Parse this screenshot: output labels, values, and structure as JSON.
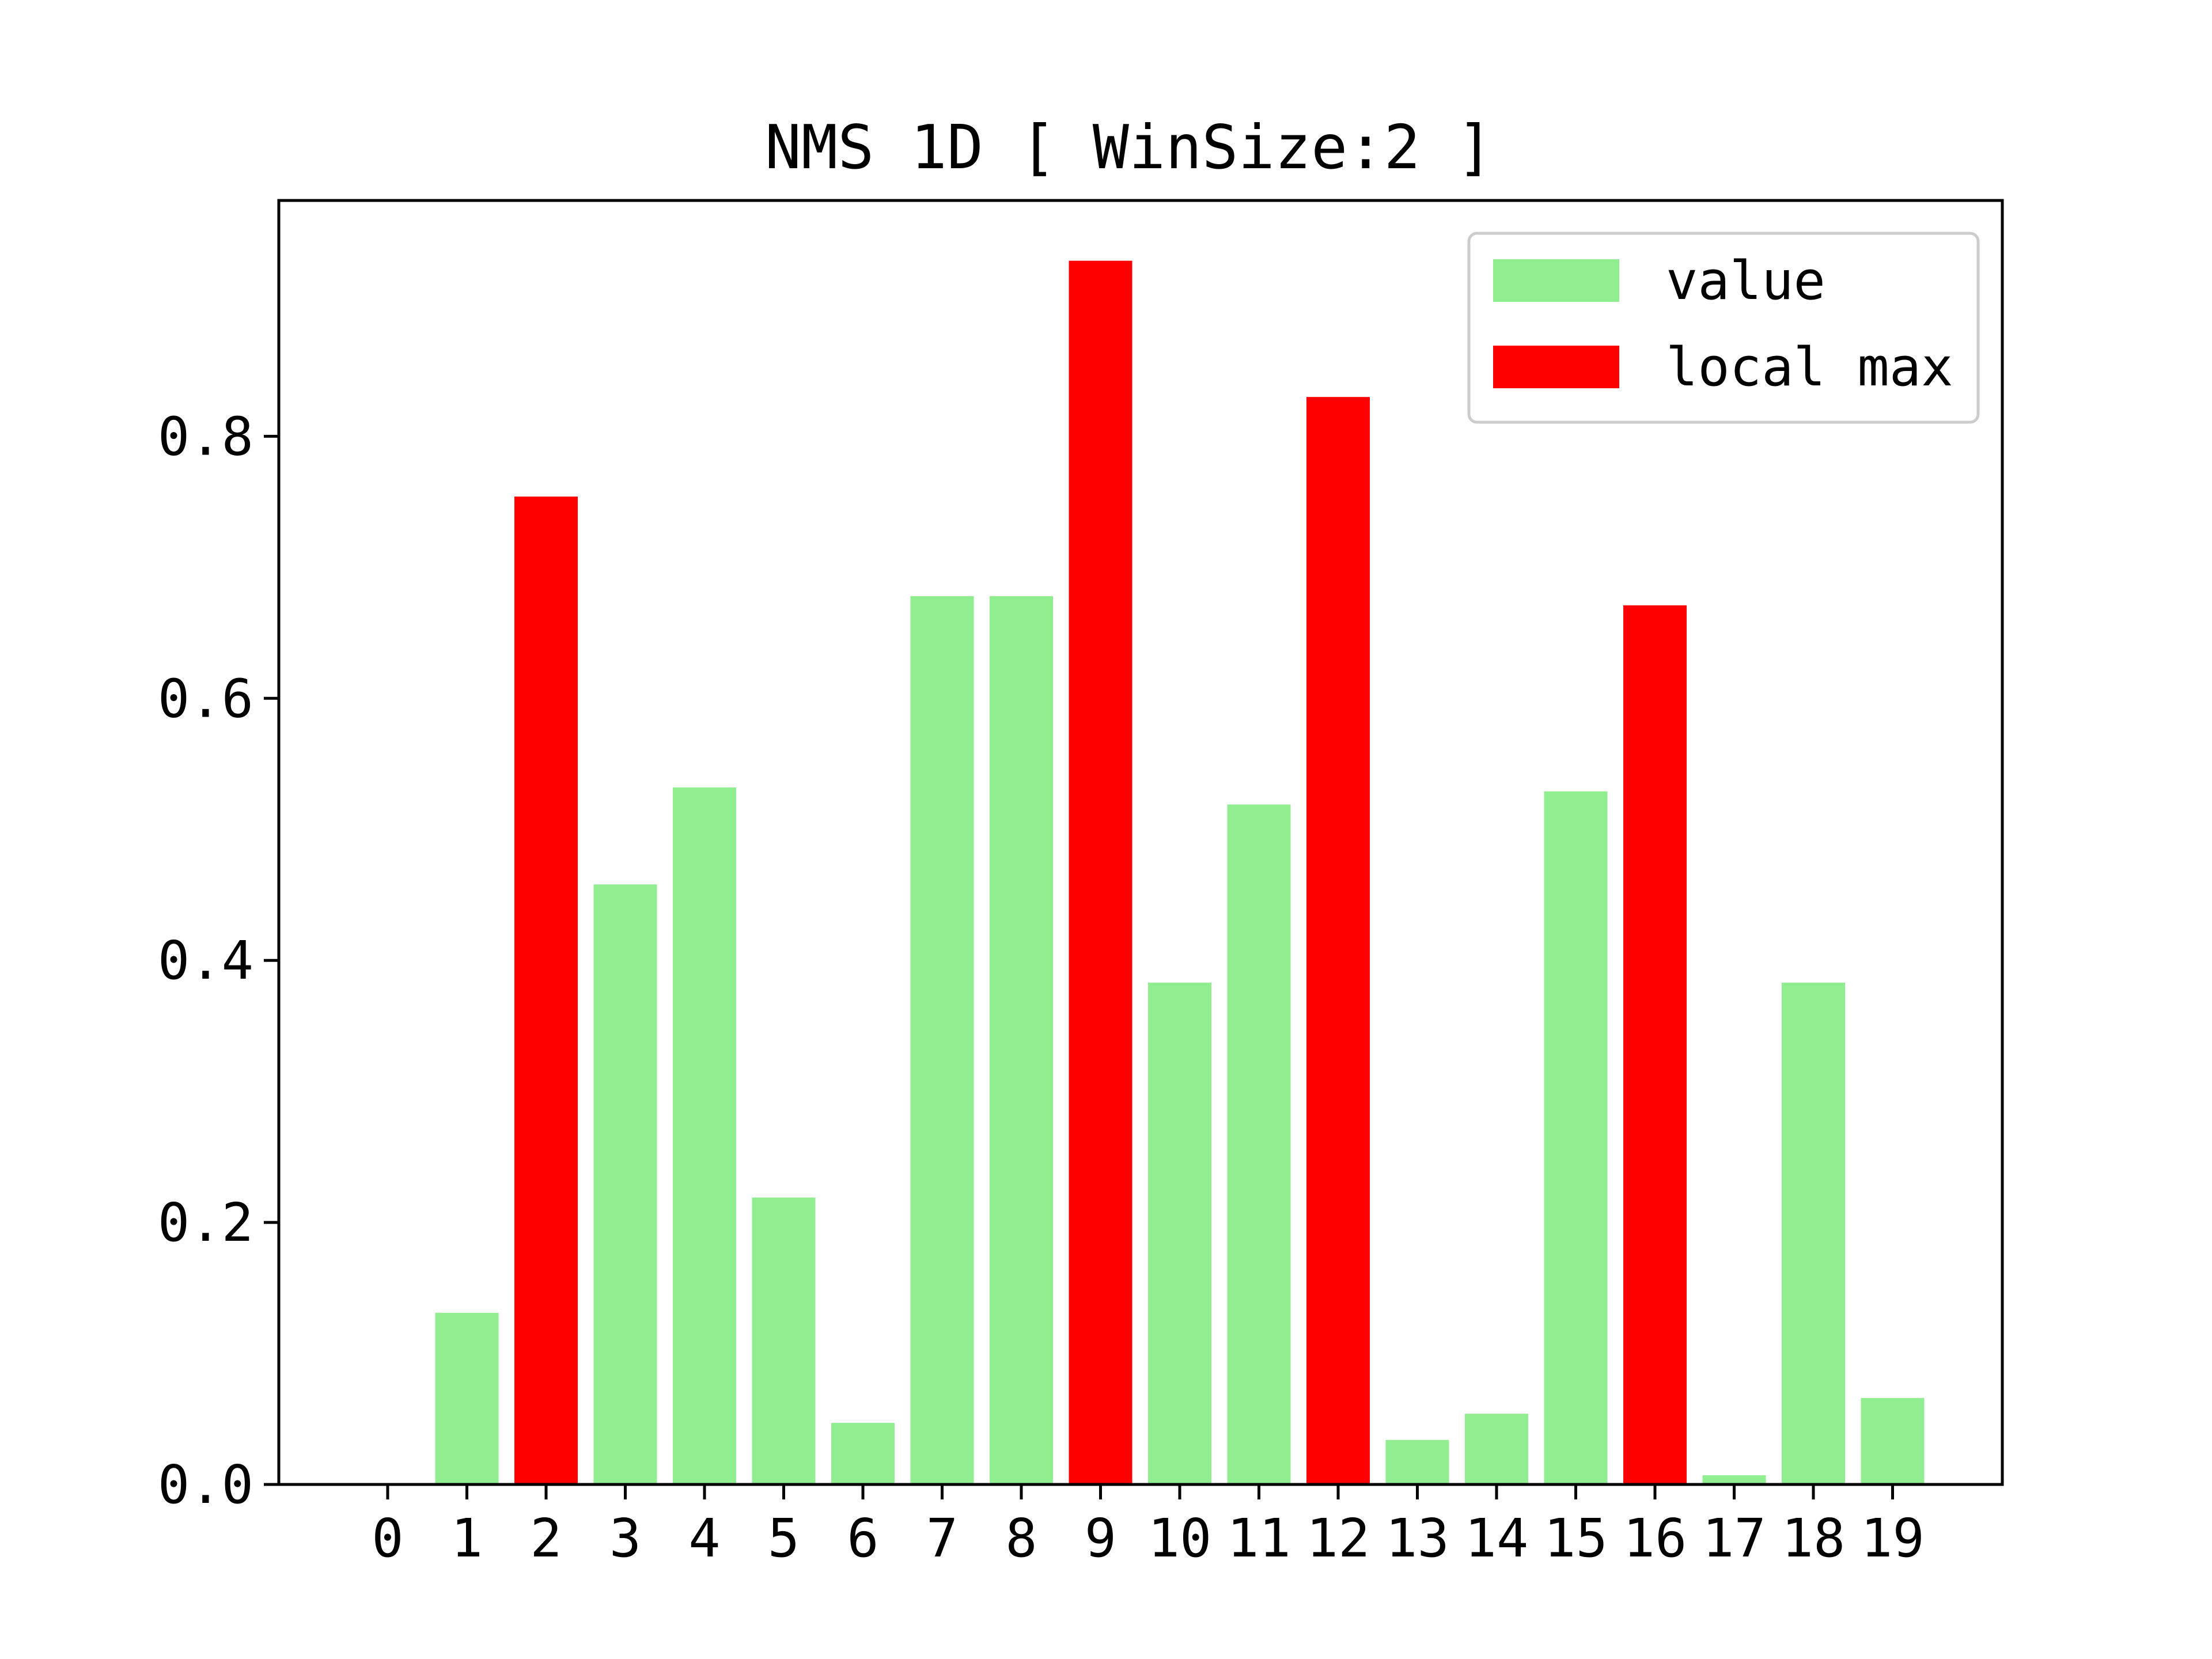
{
  "chart_data": {
    "type": "bar",
    "title": "NMS 1D [ WinSize:2 ]",
    "xlabel": "",
    "ylabel": "",
    "categories": [
      "0",
      "1",
      "2",
      "3",
      "4",
      "5",
      "6",
      "7",
      "8",
      "9",
      "10",
      "11",
      "12",
      "13",
      "14",
      "15",
      "16",
      "17",
      "18",
      "19"
    ],
    "series": [
      {
        "name": "value",
        "color": "#90ee90",
        "values": [
          0.0,
          0.131,
          null,
          0.458,
          0.532,
          0.219,
          0.047,
          0.678,
          0.678,
          null,
          0.383,
          0.519,
          null,
          0.034,
          0.054,
          0.529,
          null,
          0.007,
          0.383,
          0.066
        ]
      },
      {
        "name": "local max",
        "color": "#ff0000",
        "values": [
          null,
          null,
          0.754,
          null,
          null,
          null,
          null,
          null,
          null,
          0.934,
          null,
          null,
          0.83,
          null,
          null,
          null,
          0.671,
          null,
          null,
          null
        ]
      }
    ],
    "yticks": [
      "0.0",
      "0.2",
      "0.4",
      "0.6",
      "0.8"
    ],
    "ylim": [
      0,
      0.98
    ],
    "grid": false,
    "legend_position": "top-right"
  }
}
